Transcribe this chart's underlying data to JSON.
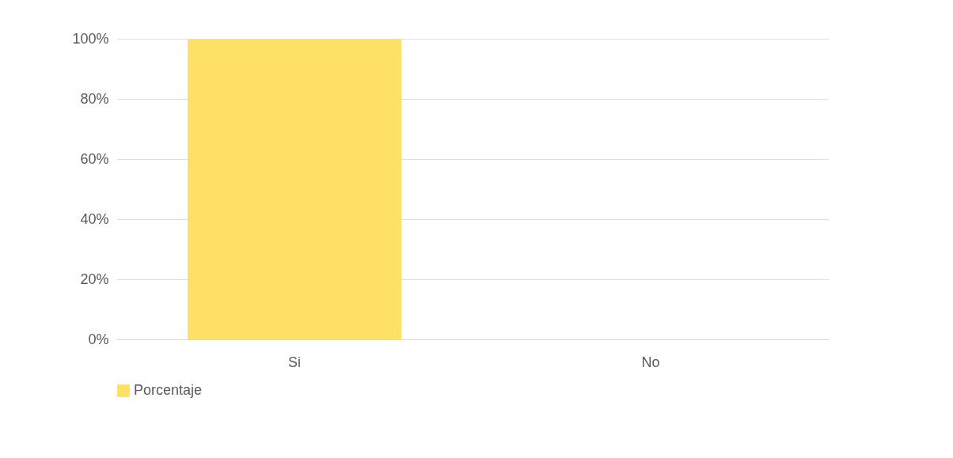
{
  "chart_data": {
    "type": "bar",
    "categories": [
      "Si",
      "No"
    ],
    "series": [
      {
        "name": "Porcentaje",
        "color": "#ffe066",
        "values": [
          100,
          0
        ]
      }
    ],
    "ylim": [
      0,
      100
    ],
    "yticks": [
      {
        "value": 0,
        "label": "0%"
      },
      {
        "value": 20,
        "label": "20%"
      },
      {
        "value": 40,
        "label": "40%"
      },
      {
        "value": 60,
        "label": "60%"
      },
      {
        "value": 80,
        "label": "80%"
      },
      {
        "value": 100,
        "label": "100%"
      }
    ],
    "grid": "y",
    "legend": "bottom"
  }
}
